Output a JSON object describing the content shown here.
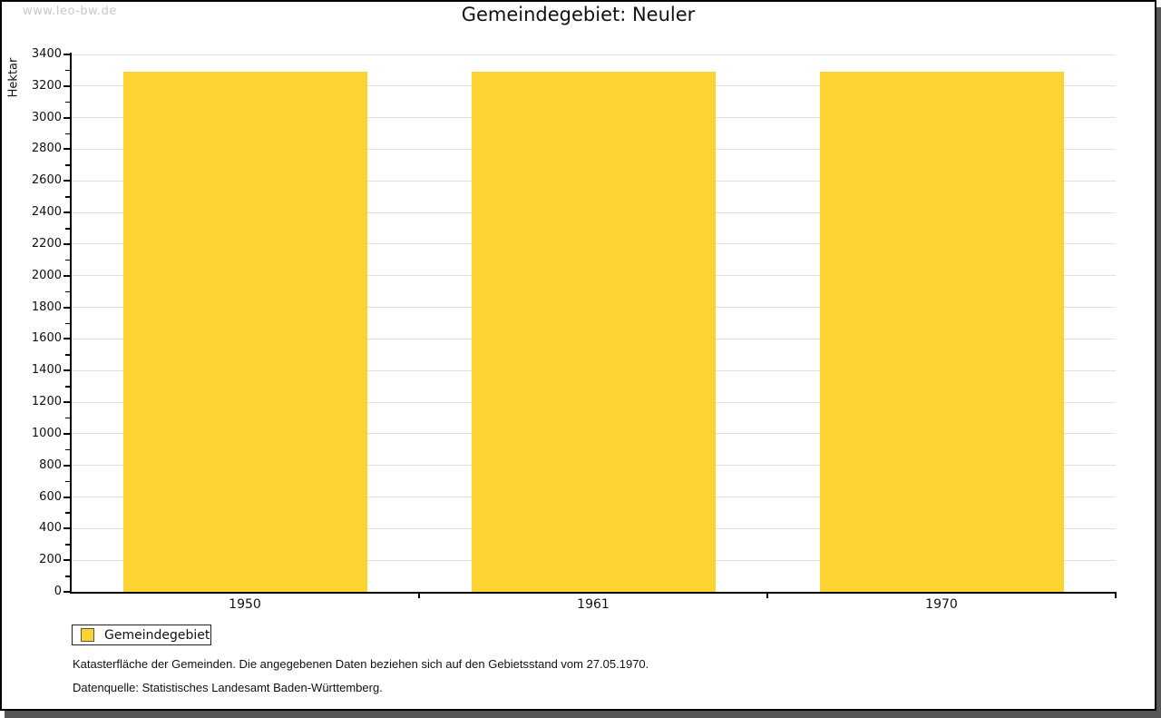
{
  "watermark": "www.leo-bw.de",
  "title": "Gemeindegebiet: Neuler",
  "chart_data": {
    "type": "bar",
    "title": "Gemeindegebiet: Neuler",
    "categories": [
      "1950",
      "1961",
      "1970"
    ],
    "series": [
      {
        "name": "Gemeindegebiet",
        "color": "#fcd330",
        "values": [
          3293,
          3293,
          3293
        ]
      }
    ],
    "xlabel": "",
    "ylabel": "Hektar",
    "ylim": [
      0,
      3400
    ],
    "ytick_major": 200,
    "ytick_minor": 100,
    "grid": true,
    "legend_position": "bottom-left"
  },
  "legend": {
    "label": "Gemeindegebiet",
    "swatch_color": "#fcd330"
  },
  "footnotes": {
    "line1": "Katasterfläche der Gemeinden. Die angegebenen Daten beziehen sich auf den Gebietsstand vom 27.05.1970.",
    "line2": "Datenquelle: Statistisches Landesamt Baden-Württemberg."
  },
  "colors": {
    "bar": "#fcd330",
    "grid": "#e0e0e0",
    "axis": "#000000",
    "text": "#111111",
    "watermark": "#c9c9c9",
    "shadow": "#565656"
  }
}
